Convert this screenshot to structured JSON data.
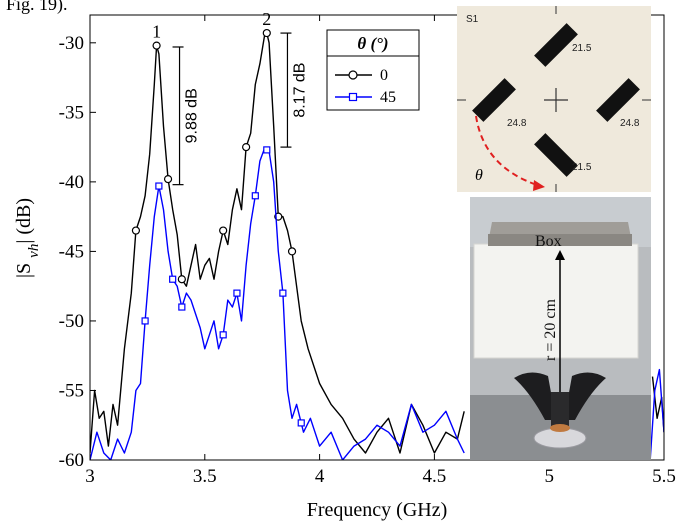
{
  "fragment_text": "Fig. 19).",
  "chart_data": {
    "type": "line",
    "xlabel": "Frequency (GHz)",
    "ylabel": "|S_vh| (dB)",
    "xlim": [
      3,
      5.5
    ],
    "ylim": [
      -60,
      -28
    ],
    "xticks": [
      3,
      3.5,
      4,
      4.5,
      5,
      5.5
    ],
    "xtick_labels": [
      "3",
      "3.5",
      "4",
      "4.5",
      "5",
      "5.5"
    ],
    "yticks": [
      -60,
      -55,
      -50,
      -45,
      -40,
      -35,
      -30
    ],
    "ytick_labels": [
      "-60",
      "-55",
      "-50",
      "-45",
      "-40",
      "-35",
      "-30"
    ],
    "grid": false,
    "legend": {
      "title": "θ (°)",
      "placement": "top-center"
    },
    "series": [
      {
        "name": "0",
        "color": "#000000",
        "marker": "circle",
        "x": [
          3.0,
          3.02,
          3.04,
          3.06,
          3.08,
          3.1,
          3.12,
          3.15,
          3.18,
          3.2,
          3.22,
          3.24,
          3.26,
          3.28,
          3.29,
          3.3,
          3.32,
          3.34,
          3.36,
          3.38,
          3.4,
          3.42,
          3.44,
          3.46,
          3.48,
          3.5,
          3.52,
          3.54,
          3.56,
          3.58,
          3.6,
          3.62,
          3.64,
          3.66,
          3.68,
          3.7,
          3.72,
          3.74,
          3.76,
          3.77,
          3.78,
          3.8,
          3.82,
          3.84,
          3.86,
          3.88,
          3.9,
          3.92,
          3.95,
          3.98,
          4.0,
          4.05,
          4.1,
          4.15,
          4.2,
          4.25,
          4.3,
          4.35,
          4.4,
          4.45,
          4.5,
          4.55,
          4.6,
          4.63,
          5.45,
          5.47,
          5.49,
          5.5
        ],
        "values": [
          -59.5,
          -55,
          -57,
          -56.5,
          -59,
          -56,
          -57.5,
          -52,
          -48,
          -43.5,
          -42.5,
          -41,
          -38,
          -33,
          -30.2,
          -30.8,
          -36,
          -39.8,
          -42,
          -43.8,
          -47,
          -47.5,
          -46,
          -44.5,
          -47,
          -46,
          -45.5,
          -47,
          -45,
          -43.5,
          -44.5,
          -42,
          -40.5,
          -42,
          -37.5,
          -36.5,
          -33,
          -31.5,
          -29.5,
          -29.3,
          -30,
          -36,
          -42.5,
          -42.5,
          -43.5,
          -45,
          -47.5,
          -50,
          -52,
          -53.5,
          -54.5,
          -56,
          -57,
          -58.5,
          -59.5,
          -58,
          -57,
          -59.5,
          -56,
          -57.5,
          -59.5,
          -58,
          -58.5,
          -56.5,
          -54,
          -57,
          -55.5,
          -58
        ],
        "markers_at": [
          3.2,
          3.29,
          3.34,
          3.4,
          3.58,
          3.68,
          3.77,
          3.82,
          3.88
        ]
      },
      {
        "name": "45",
        "color": "#0000ff",
        "marker": "square",
        "x": [
          3.0,
          3.03,
          3.06,
          3.09,
          3.12,
          3.15,
          3.18,
          3.2,
          3.22,
          3.24,
          3.26,
          3.28,
          3.3,
          3.32,
          3.34,
          3.36,
          3.38,
          3.4,
          3.42,
          3.44,
          3.46,
          3.48,
          3.5,
          3.52,
          3.54,
          3.56,
          3.58,
          3.6,
          3.62,
          3.64,
          3.66,
          3.68,
          3.7,
          3.72,
          3.74,
          3.76,
          3.78,
          3.8,
          3.82,
          3.84,
          3.86,
          3.88,
          3.9,
          3.93,
          3.96,
          4.0,
          4.05,
          4.1,
          4.15,
          4.2,
          4.25,
          4.3,
          4.35,
          4.4,
          4.45,
          4.5,
          4.55,
          4.6,
          4.63,
          5.44,
          5.46,
          5.48,
          5.5
        ],
        "values": [
          -60,
          -58,
          -59.5,
          -60,
          -58.5,
          -59.5,
          -58,
          -55,
          -54.5,
          -50,
          -46,
          -42.5,
          -40.3,
          -42,
          -45,
          -47,
          -47.5,
          -49,
          -48,
          -48.5,
          -49.5,
          -50.5,
          -52,
          -51,
          -50,
          -52,
          -51,
          -48.5,
          -49,
          -48,
          -50,
          -46,
          -43,
          -41,
          -38.5,
          -37.6,
          -37.8,
          -40,
          -45,
          -48,
          -55,
          -57,
          -56,
          -58,
          -57,
          -59,
          -58,
          -60,
          -59,
          -58.5,
          -57.5,
          -58,
          -59,
          -56,
          -58,
          -57.5,
          -56.5,
          -58.5,
          -59.5,
          -60,
          -55,
          -53.5,
          -58
        ],
        "markers_at": [
          3.24,
          3.3,
          3.36,
          3.4,
          3.58,
          3.64,
          3.72,
          3.77,
          3.84,
          3.92
        ]
      }
    ],
    "annotations": [
      {
        "text": "1",
        "x": 3.29,
        "y": -30.2
      },
      {
        "text": "2",
        "x": 3.77,
        "y": -29.3
      },
      {
        "text": "9.88 dB",
        "x": 3.39,
        "y_top": -30.3,
        "y_bottom": -40.2
      },
      {
        "text": "8.17 dB",
        "x": 3.86,
        "y_top": -29.3,
        "y_bottom": -37.5
      }
    ]
  },
  "photos": {
    "sample": {
      "title": "S1",
      "dims": [
        "21.5",
        "24.8",
        "24.8",
        "21.5"
      ],
      "angle_label": "θ"
    },
    "setup": {
      "box_label": "Box",
      "distance_label": "r = 20 cm"
    }
  }
}
